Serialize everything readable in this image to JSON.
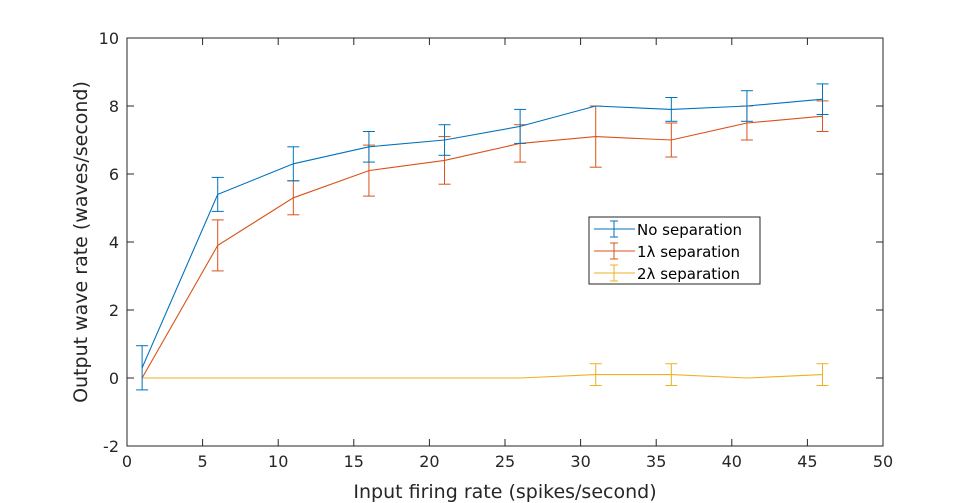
{
  "chart_data": {
    "type": "line",
    "xlabel": "Input firing rate (spikes/second)",
    "ylabel": "Output wave rate (waves/second)",
    "xlim": [
      0,
      50
    ],
    "ylim": [
      -2,
      10
    ],
    "xticks": [
      0,
      5,
      10,
      15,
      20,
      25,
      30,
      35,
      40,
      45,
      50
    ],
    "yticks": [
      -2,
      0,
      2,
      4,
      6,
      8,
      10
    ],
    "xtick_labels": [
      "0",
      "5",
      "10",
      "15",
      "20",
      "25",
      "30",
      "35",
      "40",
      "45",
      "50"
    ],
    "ytick_labels": [
      "-2",
      "0",
      "2",
      "4",
      "6",
      "8",
      "10"
    ],
    "grid": false,
    "legend_position": "center-right",
    "x": [
      1,
      6,
      11,
      16,
      21,
      26,
      31,
      36,
      41,
      46
    ],
    "series": [
      {
        "name": "No separation",
        "color": "#0072BD",
        "values": [
          0.3,
          5.4,
          6.3,
          6.8,
          7.0,
          7.4,
          8.0,
          7.9,
          8.0,
          8.2
        ],
        "errors": [
          0.65,
          0.5,
          0.5,
          0.45,
          0.45,
          0.5,
          0.0,
          0.35,
          0.45,
          0.45
        ]
      },
      {
        "name": "1λ separation",
        "color": "#D95319",
        "values": [
          0.0,
          3.9,
          5.3,
          6.1,
          6.4,
          6.9,
          7.1,
          7.0,
          7.5,
          7.7
        ],
        "errors": [
          0.0,
          0.75,
          0.5,
          0.75,
          0.7,
          0.55,
          0.9,
          0.5,
          0.5,
          0.45
        ]
      },
      {
        "name": "2λ separation",
        "color": "#EDB120",
        "values": [
          0.0,
          0.0,
          0.0,
          0.0,
          0.0,
          0.0,
          0.1,
          0.1,
          0.0,
          0.1
        ],
        "errors": [
          0.0,
          0.0,
          0.0,
          0.0,
          0.0,
          0.0,
          0.32,
          0.32,
          0.0,
          0.32
        ]
      }
    ]
  }
}
